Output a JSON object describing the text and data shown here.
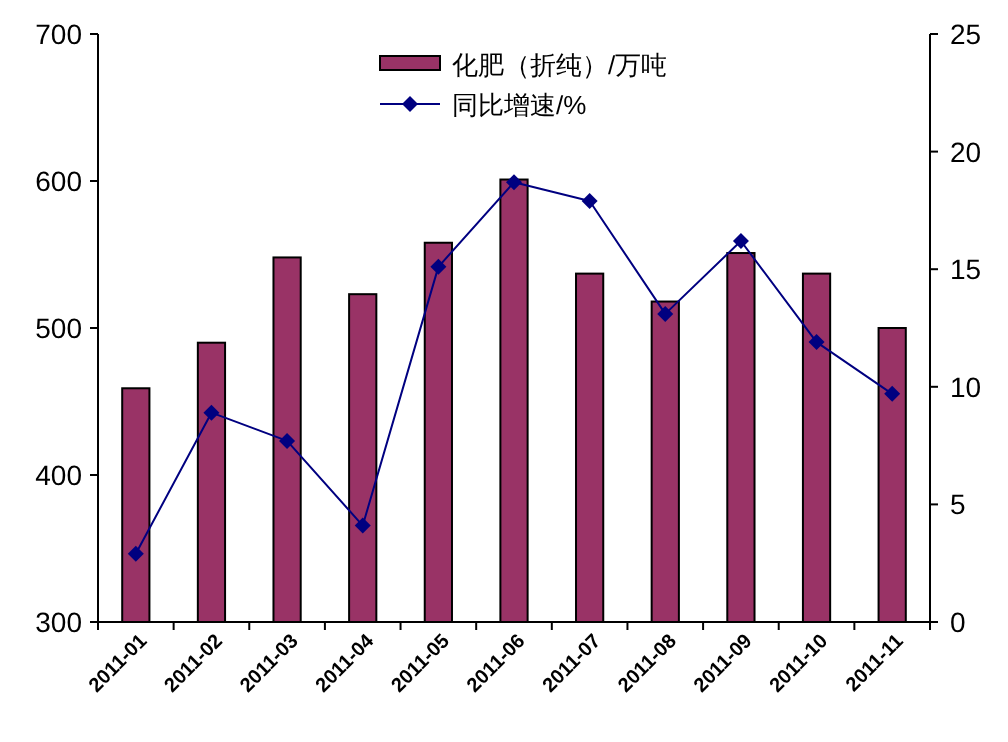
{
  "chart_data": {
    "type": "bar",
    "categories": [
      "2011-01",
      "2011-02",
      "2011-03",
      "2011-04",
      "2011-05",
      "2011-06",
      "2011-07",
      "2011-08",
      "2011-09",
      "2011-10",
      "2011-11"
    ],
    "series": [
      {
        "name": "化肥（折纯）/万吨",
        "color": "#993366",
        "values": [
          459,
          490,
          548,
          523,
          558,
          601,
          537,
          518,
          551,
          537,
          500
        ]
      },
      {
        "name": "同比增速/%",
        "type": "line",
        "axis": "y2",
        "color": "#000080",
        "marker": "diamond",
        "values": [
          2.9,
          8.9,
          7.7,
          4.1,
          15.1,
          18.7,
          17.9,
          13.1,
          16.2,
          11.9,
          9.7
        ]
      }
    ],
    "ylim": [
      300,
      700
    ],
    "yticks": [
      300,
      400,
      500,
      600,
      700
    ],
    "y2lim": [
      0,
      25
    ],
    "y2ticks": [
      0,
      5,
      10,
      15,
      20,
      25
    ],
    "grid": false,
    "legend": "top right"
  }
}
